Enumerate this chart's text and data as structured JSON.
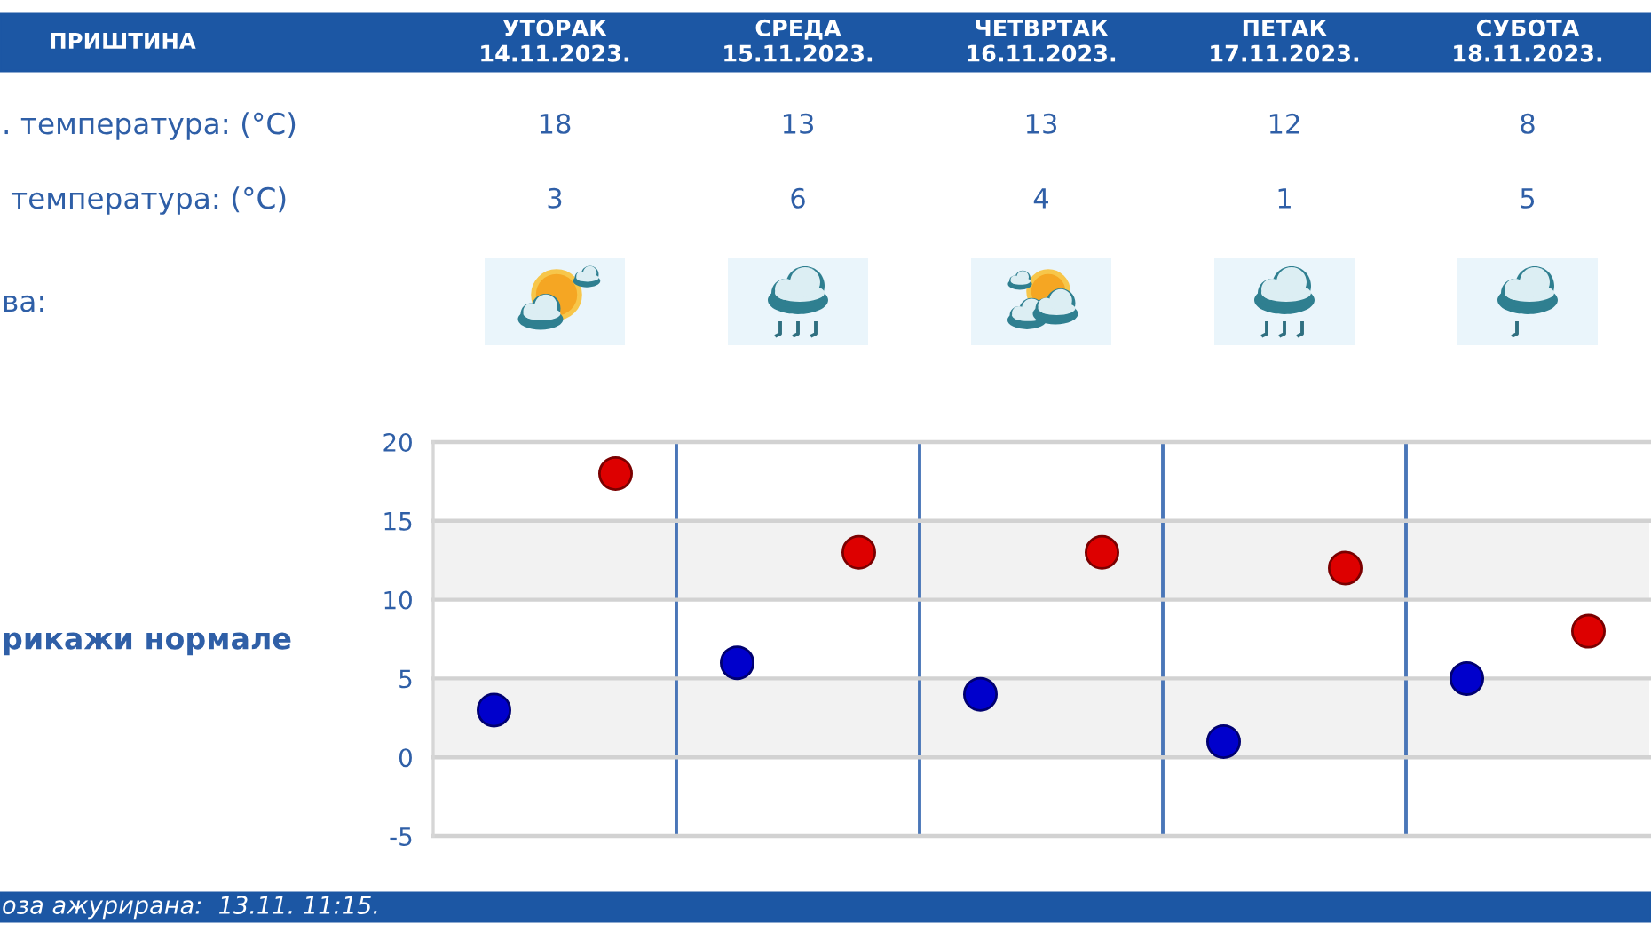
{
  "chart_data": {
    "type": "scatter",
    "title": "ПРИШТИНА",
    "categories": [
      null,
      null,
      null,
      null,
      null
    ],
    "series": [
      {
        "color": "#dd0000",
        "values": [
          18,
          13,
          13,
          12,
          8
        ]
      },
      {
        "color": "#0000cc",
        "values": [
          3,
          6,
          4,
          1,
          5
        ]
      }
    ],
    "data_labels": true,
    "marker": "circle",
    "tick_labels": "y",
    "ylim": [
      -5,
      20
    ],
    "yticks": [
      -5,
      0,
      5,
      10,
      15,
      20
    ],
    "grid": true,
    "bands": [
      {
        "axis": "y",
        "from": 0,
        "to": 5,
        "color": "#f2f2f2"
      },
      {
        "axis": "y",
        "from": 10,
        "to": 15,
        "color": "#f2f2f2"
      }
    ],
    "annotations": [
      "УТОРАК\n14.11.2023.",
      "СРЕДА\n15.11.2023.",
      "ЧЕТВРТАК\n16.11.2023.",
      "ПЕТАК\n17.11.2023.",
      "СУБОТА\n18.11.2023.",
      ". температура: (°C)",
      "температура: (°C)",
      "ва:",
      "рикажи нормале",
      "оза ажурирана:  13.11. 11:15."
    ]
  }
}
